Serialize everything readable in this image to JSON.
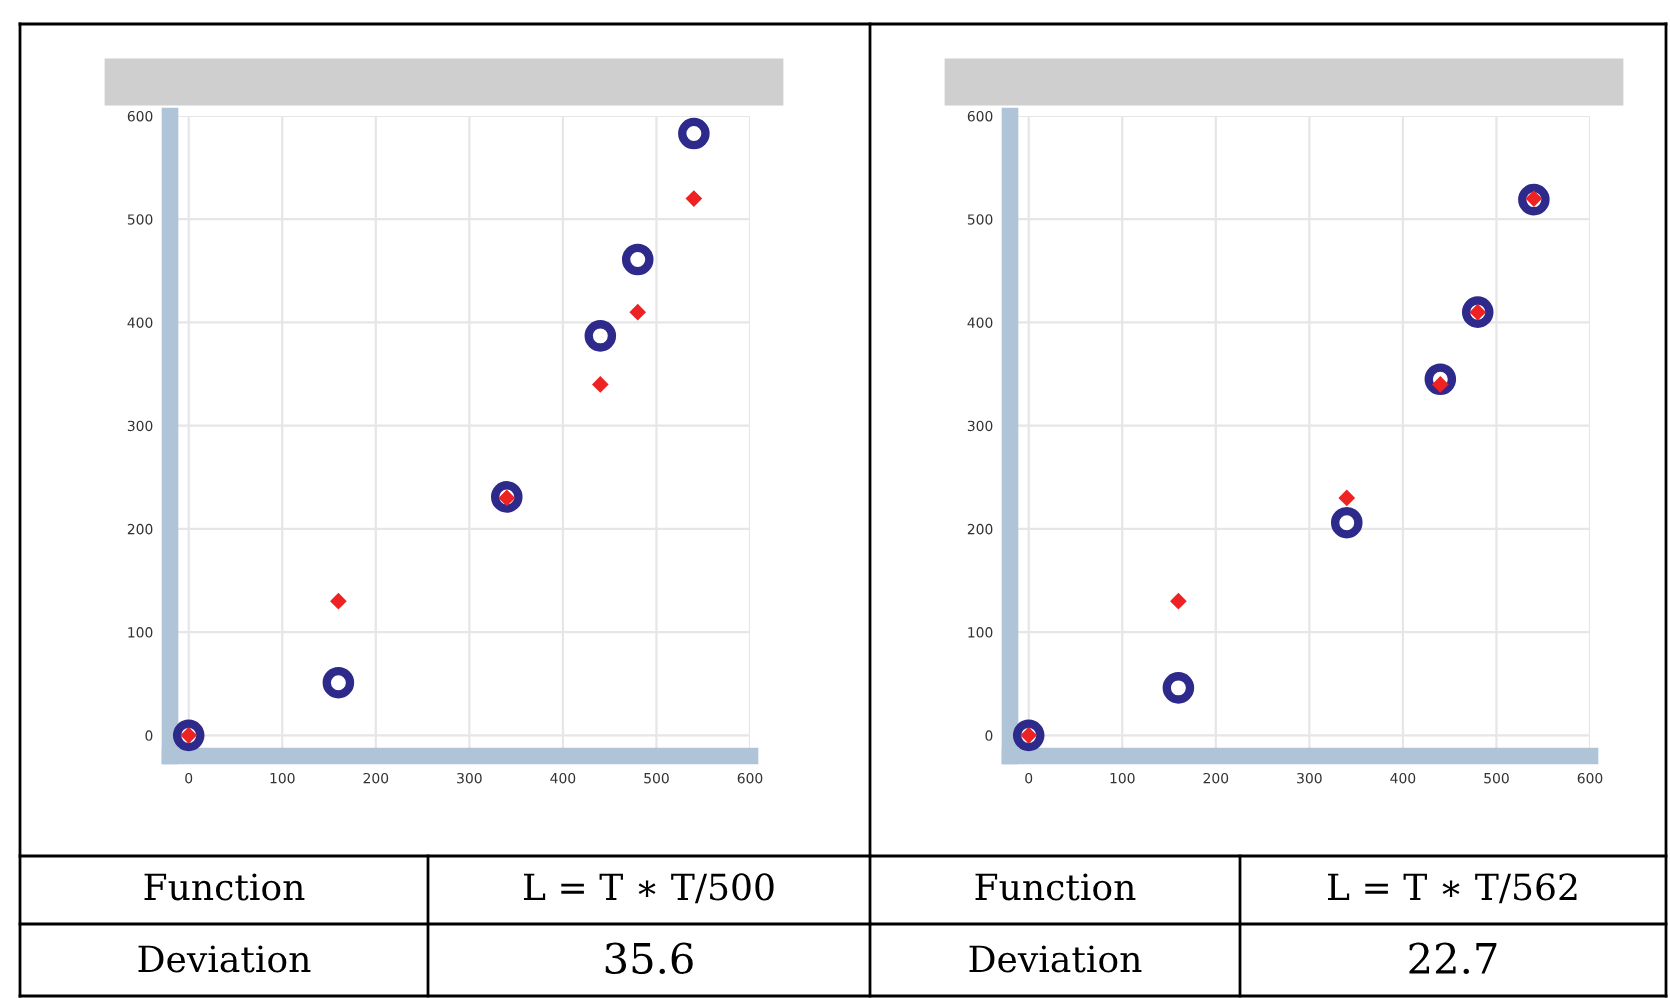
{
  "chart_data": [
    {
      "type": "scatter",
      "x": [
        0,
        160,
        340,
        440,
        480,
        540
      ],
      "xlim": [
        -20,
        600
      ],
      "ylim": [
        -20,
        600
      ],
      "xticks": [
        0,
        100,
        200,
        300,
        400,
        500,
        600
      ],
      "yticks": [
        0,
        100,
        200,
        300,
        400,
        500,
        600
      ],
      "grid": true,
      "series": [
        {
          "color": "#2e2a8c",
          "marker": "circle",
          "values": [
            0,
            51,
            231,
            387,
            461,
            583
          ]
        },
        {
          "color": "#ee2222",
          "marker": "diamond",
          "values": [
            0,
            130,
            230,
            340,
            410,
            520
          ]
        }
      ],
      "annotations": [
        "Function",
        "L = T ∗ T/500",
        "Deviation",
        "35.6"
      ]
    },
    {
      "type": "scatter",
      "x": [
        0,
        160,
        340,
        440,
        480,
        540
      ],
      "xlim": [
        -20,
        600
      ],
      "ylim": [
        -20,
        600
      ],
      "xticks": [
        0,
        100,
        200,
        300,
        400,
        500,
        600
      ],
      "yticks": [
        0,
        100,
        200,
        300,
        400,
        500,
        600
      ],
      "grid": true,
      "series": [
        {
          "color": "#2e2a8c",
          "marker": "circle",
          "values": [
            0,
            46,
            206,
            345,
            410,
            519
          ]
        },
        {
          "color": "#ee2222",
          "marker": "diamond",
          "values": [
            0,
            130,
            230,
            340,
            410,
            520
          ]
        }
      ],
      "annotations": [
        "Function",
        "L = T ∗ T/562",
        "Deviation",
        "22.7"
      ]
    }
  ]
}
